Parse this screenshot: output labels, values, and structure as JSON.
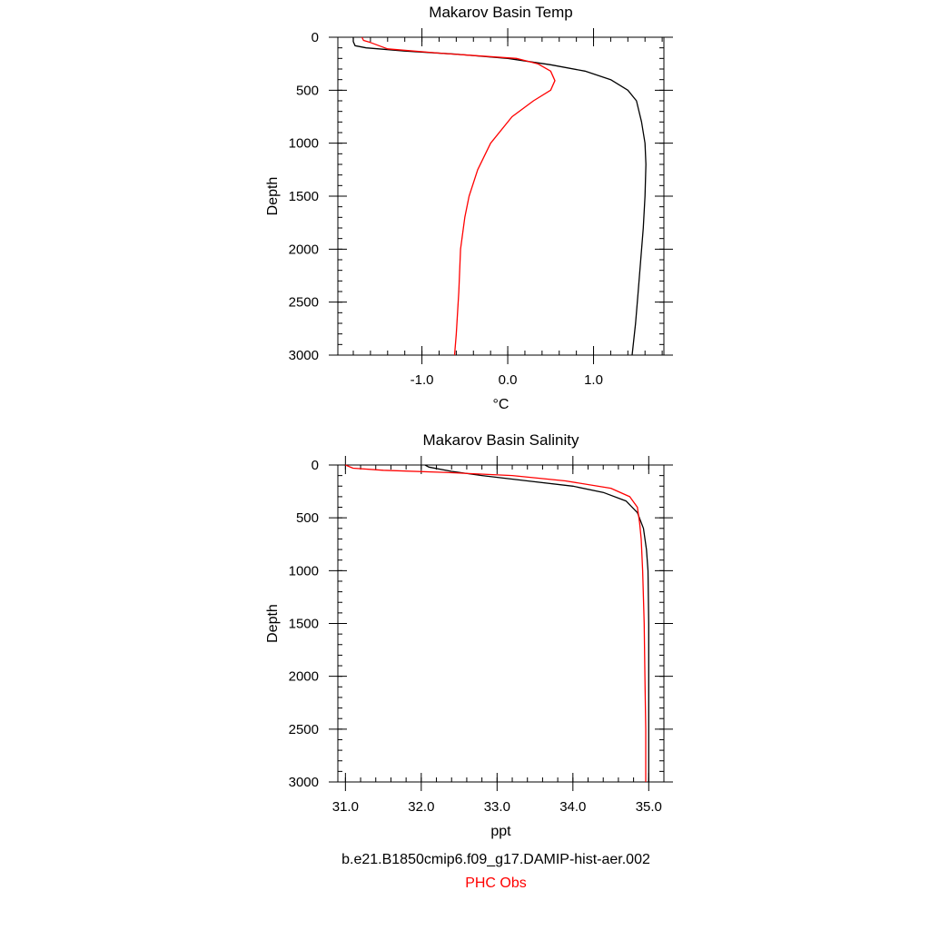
{
  "chart_data": [
    {
      "type": "line",
      "title": "Makarov Basin Temp",
      "xlabel": "°C",
      "ylabel": "Depth",
      "xlim": [
        -1.98,
        1.82
      ],
      "ylim": [
        3000,
        0
      ],
      "y_inverted": true,
      "xticks": [
        {
          "v": -1.0,
          "label": "-1.0"
        },
        {
          "v": 0.0,
          "label": "0.0"
        },
        {
          "v": 1.0,
          "label": "1.0"
        }
      ],
      "xminor_step": 0.2,
      "yticks": [
        {
          "v": 0,
          "label": "0"
        },
        {
          "v": 500,
          "label": "500"
        },
        {
          "v": 1000,
          "label": "1000"
        },
        {
          "v": 1500,
          "label": "1500"
        },
        {
          "v": 2000,
          "label": "2000"
        },
        {
          "v": 2500,
          "label": "2500"
        },
        {
          "v": 3000,
          "label": "3000"
        }
      ],
      "yminor_step": 100,
      "grid": false,
      "series": [
        {
          "name": "b.e21.B1850cmip6.f09_g17.DAMIP-hist-aer.002",
          "color": "#000000",
          "x": [
            -1.8,
            -1.8,
            -1.78,
            -1.65,
            -1.2,
            -0.6,
            0.0,
            0.5,
            0.9,
            1.2,
            1.4,
            1.5,
            1.56,
            1.6,
            1.61,
            1.6,
            1.58,
            1.55,
            1.52,
            1.49,
            1.45
          ],
          "y": [
            0,
            40,
            80,
            100,
            130,
            160,
            200,
            260,
            320,
            400,
            500,
            600,
            800,
            1000,
            1200,
            1500,
            1800,
            2100,
            2400,
            2700,
            3000
          ]
        },
        {
          "name": "PHC Obs",
          "color": "#ff0000",
          "x": [
            -1.7,
            -1.68,
            -1.6,
            -1.5,
            -1.4,
            -0.8,
            0.1,
            0.35,
            0.5,
            0.55,
            0.5,
            0.3,
            0.05,
            -0.2,
            -0.35,
            -0.45,
            -0.5,
            -0.55,
            -0.57,
            -0.6,
            -0.62
          ],
          "y": [
            0,
            30,
            50,
            80,
            110,
            150,
            200,
            250,
            320,
            410,
            500,
            600,
            750,
            1000,
            1250,
            1500,
            1700,
            2000,
            2400,
            2800,
            3000
          ]
        }
      ]
    },
    {
      "type": "line",
      "title": "Makarov Basin Salinity",
      "xlabel": "ppt",
      "ylabel": "Depth",
      "xlim": [
        30.9,
        35.2
      ],
      "ylim": [
        3000,
        0
      ],
      "y_inverted": true,
      "xticks": [
        {
          "v": 31.0,
          "label": "31.0"
        },
        {
          "v": 32.0,
          "label": "32.0"
        },
        {
          "v": 33.0,
          "label": "33.0"
        },
        {
          "v": 34.0,
          "label": "34.0"
        },
        {
          "v": 35.0,
          "label": "35.0"
        }
      ],
      "xminor_step": 0.2,
      "yticks": [
        {
          "v": 0,
          "label": "0"
        },
        {
          "v": 500,
          "label": "500"
        },
        {
          "v": 1000,
          "label": "1000"
        },
        {
          "v": 1500,
          "label": "1500"
        },
        {
          "v": 2000,
          "label": "2000"
        },
        {
          "v": 2500,
          "label": "2500"
        },
        {
          "v": 3000,
          "label": "3000"
        }
      ],
      "yminor_step": 100,
      "grid": false,
      "series": [
        {
          "name": "b.e21.B1850cmip6.f09_g17.DAMIP-hist-aer.002",
          "color": "#000000",
          "x": [
            32.05,
            32.1,
            32.4,
            32.8,
            33.4,
            34.0,
            34.4,
            34.7,
            34.85,
            34.93,
            34.97,
            34.99,
            35.0,
            35.0,
            35.0,
            35.0
          ],
          "y": [
            0,
            20,
            60,
            100,
            150,
            200,
            260,
            340,
            450,
            600,
            800,
            1000,
            1500,
            2000,
            2500,
            3000
          ]
        },
        {
          "name": "PHC Obs",
          "color": "#ff0000",
          "x": [
            31.0,
            31.1,
            31.5,
            32.3,
            33.2,
            33.9,
            34.5,
            34.75,
            34.85,
            34.88,
            34.9,
            34.92,
            34.94,
            34.95,
            34.96,
            34.96
          ],
          "y": [
            0,
            30,
            50,
            70,
            100,
            150,
            220,
            300,
            400,
            550,
            700,
            1000,
            1500,
            2000,
            2500,
            3000
          ]
        }
      ]
    }
  ],
  "legend": {
    "placement": "bottom-center",
    "items": [
      {
        "label": "b.e21.B1850cmip6.f09_g17.DAMIP-hist-aer.002",
        "color": "#000000"
      },
      {
        "label": "PHC Obs",
        "color": "#ff0000"
      }
    ]
  }
}
